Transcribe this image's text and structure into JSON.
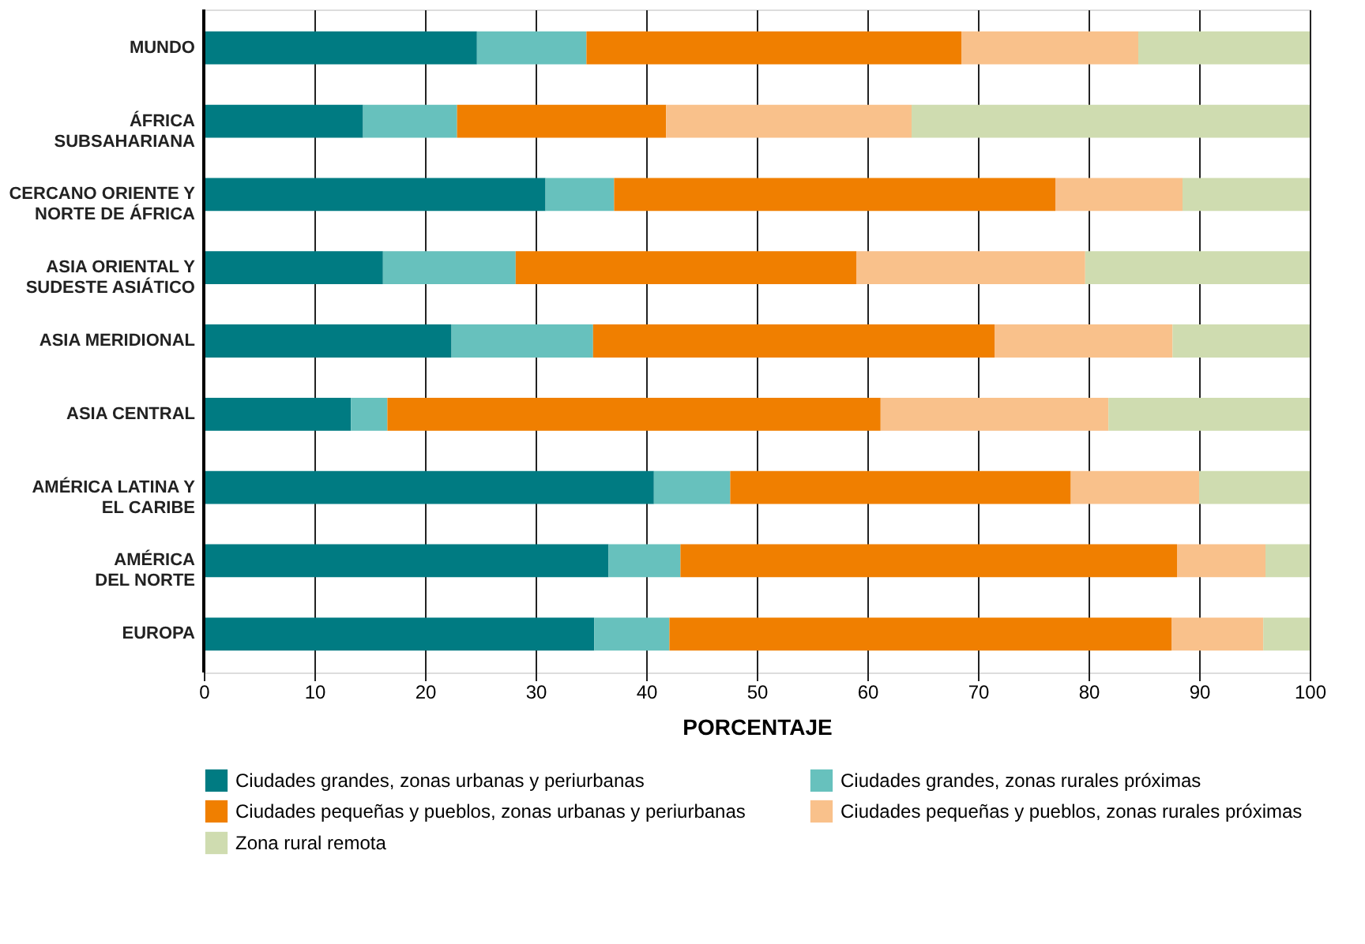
{
  "chart_data": {
    "type": "bar",
    "orientation": "horizontal",
    "stacked": true,
    "categories": [
      "MUNDO",
      "ÁFRICA\nSUBSAHARIANA",
      "CERCANO ORIENTE Y\nNORTE DE ÁFRICA",
      "ASIA ORIENTAL Y\nSUDESTE ASIÁTICO",
      "ASIA MERIDIONAL",
      "ASIA CENTRAL",
      "AMÉRICA LATINA Y\nEL CARIBE",
      "AMÉRICA\nDEL NORTE",
      "EUROPA"
    ],
    "series": [
      {
        "name": "Ciudades grandes, zonas urbanas y periurbanas",
        "color": "#007b82",
        "values": [
          24.7,
          14.4,
          30.9,
          16.2,
          22.4,
          13.3,
          40.7,
          36.6,
          35.3
        ]
      },
      {
        "name": "Ciudades grandes, zonas rurales próximas",
        "color": "#67c1bd",
        "values": [
          9.9,
          8.5,
          6.2,
          12.0,
          12.8,
          3.3,
          6.9,
          6.5,
          6.8
        ]
      },
      {
        "name": "Ciudades pequeñas y pueblos, zonas urbanas y periurbanas",
        "color": "#f07f00",
        "values": [
          33.9,
          18.9,
          39.9,
          30.8,
          36.3,
          44.6,
          30.8,
          44.9,
          45.4
        ]
      },
      {
        "name": "Ciudades pequeñas y pueblos, zonas rurales próximas",
        "color": "#f9c18b",
        "values": [
          16.0,
          22.2,
          11.5,
          20.7,
          16.1,
          20.6,
          11.6,
          8.0,
          8.3
        ]
      },
      {
        "name": "Zona rural remota",
        "color": "#cfdcb0",
        "values": [
          15.5,
          36.0,
          11.5,
          20.3,
          12.4,
          18.2,
          10.0,
          4.0,
          4.2
        ]
      }
    ],
    "xlabel": "PORCENTAJE",
    "xlim": [
      0,
      100
    ],
    "xticks": [
      0,
      10,
      20,
      30,
      40,
      50,
      60,
      70,
      80,
      90,
      100
    ],
    "grid": "x",
    "legend": "bottom"
  }
}
